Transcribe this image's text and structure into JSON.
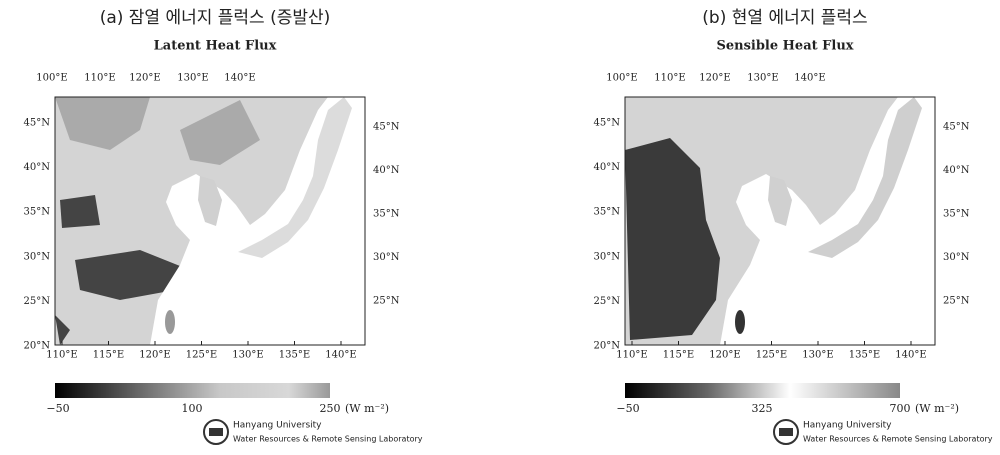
{
  "panels": [
    {
      "caption": "(a) 잠열 에너지 플럭스 (증발산)",
      "title": "Latent Heat Flux",
      "top_lon": [
        "100°E",
        "110°E",
        "120°E",
        "130°E",
        "140°E"
      ],
      "bottom_lon": [
        "110°E",
        "115°E",
        "120°E",
        "125°E",
        "130°E",
        "135°E",
        "140°E"
      ],
      "left_lat": [
        "45°N",
        "40°N",
        "35°N",
        "30°N",
        "25°N",
        "20°N"
      ],
      "right_lat": [
        "45°N",
        "40°N",
        "35°N",
        "30°N",
        "25°N"
      ],
      "colorbar": {
        "min": "−50",
        "mid": "100",
        "max": "250",
        "unit": "(W m⁻²)"
      }
    },
    {
      "caption": "(b) 현열 에너지 플럭스",
      "title": "Sensible Heat Flux",
      "top_lon": [
        "100°E",
        "110°E",
        "120°E",
        "130°E",
        "140°E"
      ],
      "bottom_lon": [
        "110°E",
        "115°E",
        "120°E",
        "125°E",
        "130°E",
        "135°E",
        "140°E"
      ],
      "left_lat": [
        "45°N",
        "40°N",
        "35°N",
        "30°N",
        "25°N",
        "20°N"
      ],
      "right_lat": [
        "45°N",
        "40°N",
        "35°N",
        "30°N",
        "25°N"
      ],
      "colorbar": {
        "min": "−50",
        "mid": "325",
        "max": "700",
        "unit": "(W m⁻²)"
      }
    }
  ],
  "logo": {
    "line1": "Hanyang University",
    "line2": "Water Resources & Remote Sensing Laboratory"
  }
}
